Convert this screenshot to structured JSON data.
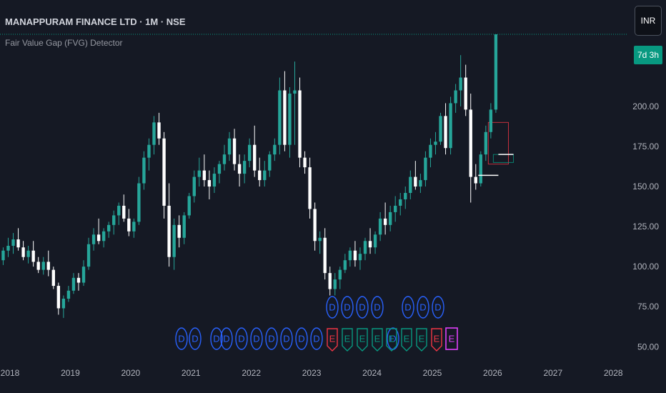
{
  "header": {
    "title": "MANAPPURAM FINANCE LTD · 1M · NSE",
    "indicator_name": "Fair Value Gap (FVG) Detector",
    "currency": "INR",
    "countdown": "7d 3h"
  },
  "colors": {
    "background": "#151924",
    "up": "#26a69a",
    "down": "#ffffff",
    "axis_text": "#b2b5be",
    "marker_d": "#2962ff",
    "marker_e_red": "#f23645",
    "marker_e_green": "#089981",
    "marker_e_purple": "#e040fb",
    "last_price_line": "#089981"
  },
  "chart_data": {
    "type": "candlestick",
    "y_axis": {
      "ylim": [
        47,
        245
      ],
      "ticks": [
        200,
        175,
        150,
        125,
        100,
        75,
        50
      ],
      "tick_labels": [
        "200.00",
        "175.00",
        "150.00",
        "125.00",
        "100.00",
        "75.00",
        "50.00"
      ]
    },
    "x_axis": {
      "xlim": [
        2018.0,
        2028.4
      ],
      "ticks": [
        2018,
        2019,
        2020,
        2021,
        2022,
        2023,
        2024,
        2025,
        2026,
        2027,
        2028
      ],
      "tick_labels": [
        "2018",
        "2019",
        "2020",
        "2021",
        "2022",
        "2023",
        "2024",
        "2025",
        "2026",
        "2027",
        "2028"
      ]
    },
    "start": {
      "year": 2017,
      "month": 10
    },
    "ohlc": [
      [
        100,
        108,
        96,
        104
      ],
      [
        104,
        112,
        101,
        110
      ],
      [
        110,
        118,
        106,
        113
      ],
      [
        113,
        121,
        108,
        117
      ],
      [
        117,
        124,
        110,
        112
      ],
      [
        112,
        116,
        104,
        106
      ],
      [
        106,
        113,
        102,
        110
      ],
      [
        110,
        116,
        100,
        103
      ],
      [
        103,
        106,
        96,
        98
      ],
      [
        98,
        106,
        95,
        103
      ],
      [
        103,
        110,
        94,
        98
      ],
      [
        98,
        100,
        86,
        88
      ],
      [
        88,
        90,
        70,
        74
      ],
      [
        74,
        82,
        68,
        80
      ],
      [
        80,
        88,
        78,
        85
      ],
      [
        85,
        96,
        83,
        93
      ],
      [
        93,
        96,
        85,
        90
      ],
      [
        90,
        104,
        88,
        100
      ],
      [
        100,
        118,
        98,
        114
      ],
      [
        114,
        124,
        110,
        120
      ],
      [
        120,
        130,
        114,
        116
      ],
      [
        116,
        124,
        112,
        122
      ],
      [
        122,
        128,
        118,
        126
      ],
      [
        126,
        135,
        120,
        132
      ],
      [
        132,
        140,
        126,
        138
      ],
      [
        138,
        145,
        128,
        130
      ],
      [
        130,
        136,
        119,
        122
      ],
      [
        122,
        130,
        118,
        128
      ],
      [
        128,
        156,
        126,
        152
      ],
      [
        152,
        172,
        148,
        168
      ],
      [
        168,
        180,
        160,
        176
      ],
      [
        176,
        194,
        170,
        190
      ],
      [
        190,
        196,
        176,
        180
      ],
      [
        180,
        184,
        130,
        138
      ],
      [
        138,
        152,
        100,
        106
      ],
      [
        106,
        130,
        98,
        126
      ],
      [
        126,
        132,
        112,
        118
      ],
      [
        118,
        134,
        114,
        132
      ],
      [
        132,
        146,
        130,
        144
      ],
      [
        144,
        160,
        140,
        156
      ],
      [
        156,
        168,
        150,
        160
      ],
      [
        160,
        170,
        150,
        154
      ],
      [
        154,
        160,
        142,
        150
      ],
      [
        150,
        162,
        146,
        158
      ],
      [
        158,
        166,
        152,
        164
      ],
      [
        164,
        176,
        160,
        170
      ],
      [
        170,
        184,
        166,
        180
      ],
      [
        180,
        186,
        160,
        164
      ],
      [
        164,
        170,
        150,
        158
      ],
      [
        158,
        170,
        152,
        166
      ],
      [
        166,
        180,
        162,
        176
      ],
      [
        176,
        188,
        156,
        160
      ],
      [
        160,
        168,
        150,
        154
      ],
      [
        154,
        166,
        150,
        160
      ],
      [
        160,
        172,
        156,
        170
      ],
      [
        170,
        180,
        166,
        176
      ],
      [
        176,
        218,
        170,
        210
      ],
      [
        210,
        222,
        172,
        176
      ],
      [
        176,
        212,
        168,
        208
      ],
      [
        208,
        228,
        176,
        210
      ],
      [
        210,
        218,
        162,
        168
      ],
      [
        168,
        172,
        158,
        162
      ],
      [
        162,
        168,
        130,
        136
      ],
      [
        136,
        140,
        110,
        116
      ],
      [
        116,
        122,
        108,
        118
      ],
      [
        118,
        124,
        92,
        96
      ],
      [
        96,
        100,
        82,
        86
      ],
      [
        86,
        96,
        82,
        92
      ],
      [
        92,
        100,
        86,
        98
      ],
      [
        98,
        108,
        96,
        104
      ],
      [
        104,
        112,
        100,
        110
      ],
      [
        110,
        116,
        100,
        104
      ],
      [
        104,
        112,
        98,
        108
      ],
      [
        108,
        118,
        104,
        116
      ],
      [
        116,
        124,
        108,
        112
      ],
      [
        112,
        122,
        108,
        120
      ],
      [
        120,
        134,
        116,
        130
      ],
      [
        130,
        140,
        120,
        126
      ],
      [
        126,
        138,
        122,
        134
      ],
      [
        134,
        144,
        128,
        138
      ],
      [
        138,
        146,
        132,
        142
      ],
      [
        142,
        150,
        136,
        146
      ],
      [
        146,
        160,
        142,
        156
      ],
      [
        156,
        166,
        148,
        150
      ],
      [
        150,
        158,
        146,
        154
      ],
      [
        154,
        172,
        150,
        168
      ],
      [
        168,
        180,
        162,
        176
      ],
      [
        176,
        184,
        170,
        178
      ],
      [
        178,
        196,
        176,
        194
      ],
      [
        194,
        202,
        170,
        174
      ],
      [
        174,
        206,
        170,
        202
      ],
      [
        202,
        214,
        196,
        210
      ],
      [
        210,
        232,
        200,
        218
      ],
      [
        218,
        226,
        194,
        198
      ],
      [
        198,
        208,
        140,
        156
      ],
      [
        156,
        164,
        148,
        152
      ],
      [
        152,
        172,
        150,
        170
      ],
      [
        170,
        188,
        166,
        184
      ],
      [
        184,
        202,
        180,
        198
      ],
      [
        198,
        245,
        196,
        245
      ]
    ],
    "fvg_zones": [
      {
        "from_bar": 98,
        "to_bar": 101,
        "top": 190,
        "bottom": 164,
        "color": "#f23645"
      },
      {
        "from_bar": 99,
        "to_bar": 102,
        "top": 170,
        "bottom": 165,
        "color": "#089981"
      }
    ],
    "levels": [
      {
        "from_bar": 96,
        "to_bar": 99,
        "value": 157,
        "color": "#ffffff"
      },
      {
        "from_bar": 100,
        "to_bar": 102,
        "value": 170,
        "color": "#ffffff"
      }
    ],
    "markers": [
      {
        "label": "D",
        "x": 254,
        "row": 2,
        "shape": "circle",
        "color": "#2962ff"
      },
      {
        "label": "D",
        "x": 273,
        "row": 2,
        "shape": "circle",
        "color": "#2962ff"
      },
      {
        "label": "D",
        "x": 303,
        "row": 2,
        "shape": "circle",
        "color": "#2962ff"
      },
      {
        "label": "D",
        "x": 317,
        "row": 2,
        "shape": "circle",
        "color": "#2962ff"
      },
      {
        "label": "D",
        "x": 338,
        "row": 2,
        "shape": "circle",
        "color": "#2962ff"
      },
      {
        "label": "D",
        "x": 359,
        "row": 2,
        "shape": "circle",
        "color": "#2962ff"
      },
      {
        "label": "D",
        "x": 380,
        "row": 2,
        "shape": "circle",
        "color": "#2962ff"
      },
      {
        "label": "D",
        "x": 401,
        "row": 2,
        "shape": "circle",
        "color": "#2962ff"
      },
      {
        "label": "D",
        "x": 422,
        "row": 2,
        "shape": "circle",
        "color": "#2962ff"
      },
      {
        "label": "D",
        "x": 443,
        "row": 2,
        "shape": "circle",
        "color": "#2962ff"
      },
      {
        "label": "D",
        "x": 465,
        "row": 1,
        "shape": "circle",
        "color": "#2962ff"
      },
      {
        "label": "D",
        "x": 486,
        "row": 1,
        "shape": "circle",
        "color": "#2962ff"
      },
      {
        "label": "D",
        "x": 507,
        "row": 1,
        "shape": "circle",
        "color": "#2962ff"
      },
      {
        "label": "D",
        "x": 528,
        "row": 1,
        "shape": "circle",
        "color": "#2962ff"
      },
      {
        "label": "D",
        "x": 571,
        "row": 1,
        "shape": "circle",
        "color": "#2962ff"
      },
      {
        "label": "D",
        "x": 592,
        "row": 1,
        "shape": "circle",
        "color": "#2962ff"
      },
      {
        "label": "D",
        "x": 613,
        "row": 1,
        "shape": "circle",
        "color": "#2962ff"
      },
      {
        "label": "D",
        "x": 550,
        "row": 2,
        "shape": "circle",
        "color": "#2962ff"
      },
      {
        "label": "E",
        "x": 465,
        "row": 2,
        "shape": "pennant",
        "color": "#f23645"
      },
      {
        "label": "E",
        "x": 486,
        "row": 2,
        "shape": "pennant",
        "color": "#089981"
      },
      {
        "label": "E",
        "x": 507,
        "row": 2,
        "shape": "pennant",
        "color": "#089981"
      },
      {
        "label": "E",
        "x": 528,
        "row": 2,
        "shape": "pennant",
        "color": "#089981"
      },
      {
        "label": "E",
        "x": 548,
        "row": 2,
        "shape": "pennant",
        "color": "#089981"
      },
      {
        "label": "E",
        "x": 569,
        "row": 2,
        "shape": "pennant",
        "color": "#089981"
      },
      {
        "label": "E",
        "x": 590,
        "row": 2,
        "shape": "pennant",
        "color": "#089981"
      },
      {
        "label": "E",
        "x": 611,
        "row": 2,
        "shape": "pennant",
        "color": "#f23645"
      },
      {
        "label": "E",
        "x": 632,
        "row": 2,
        "shape": "box",
        "color": "#e040fb"
      }
    ]
  }
}
